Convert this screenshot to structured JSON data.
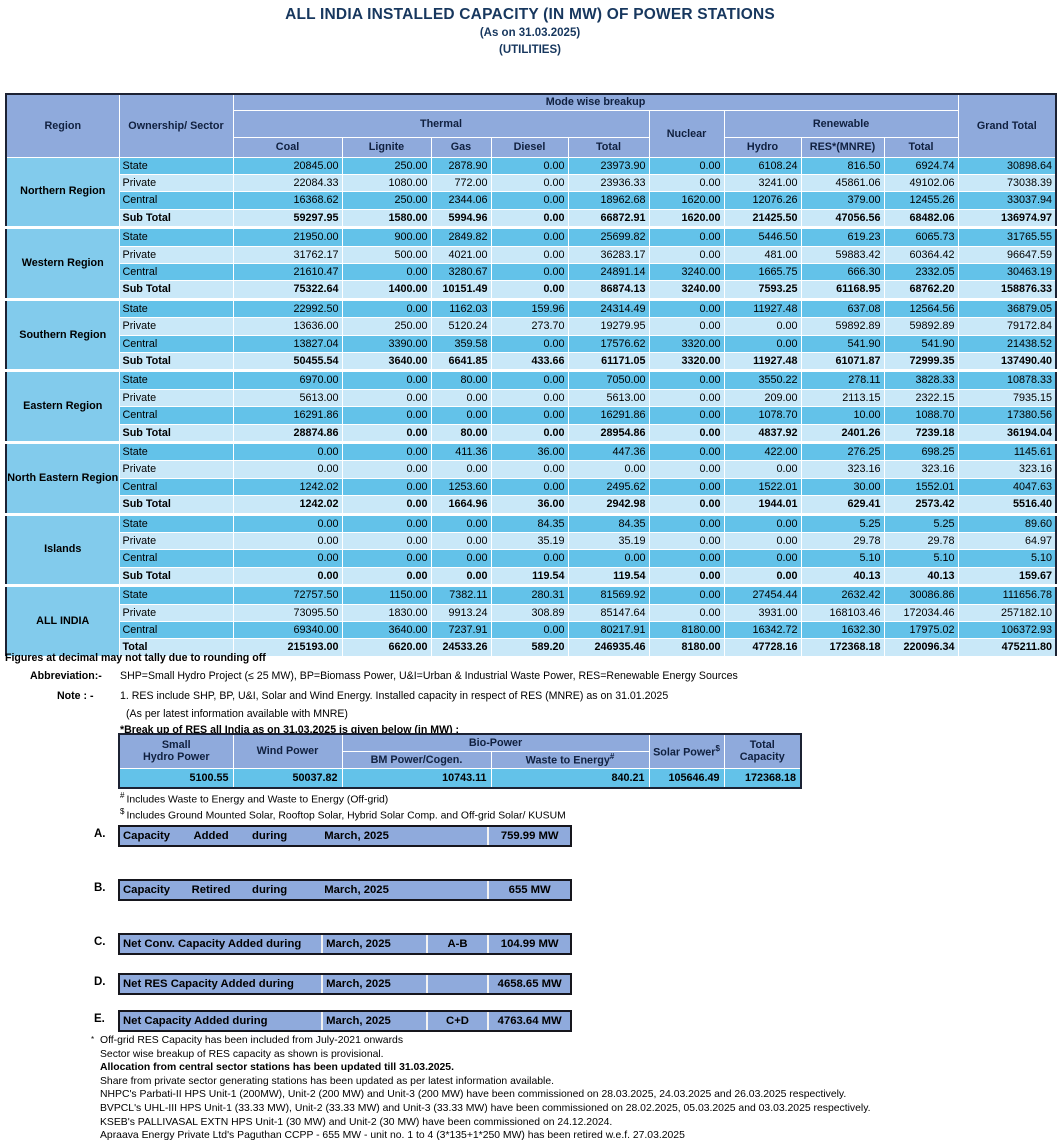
{
  "colors": {
    "header_blue": "#8FAADC",
    "region_blue": "#82CBEC",
    "row_medium": "#63C2E9",
    "row_light": "#C9E8F8",
    "title_navy": "#17375E",
    "border_dark": "#1c2233"
  },
  "title": {
    "main": "ALL INDIA  INSTALLED CAPACITY (IN MW) OF POWER STATIONS",
    "as_on": "(As on 31.03.2025)",
    "utilities": "(UTILITIES)"
  },
  "main_table": {
    "header": {
      "region": "Region",
      "ownership": "Ownership/ Sector",
      "mode_breakup": "Mode wise breakup",
      "thermal": "Thermal",
      "nuclear": "Nuclear",
      "renewable": "Renewable",
      "grand_total": "Grand Total",
      "columns": [
        "Coal",
        "Lignite",
        "Gas",
        "Diesel",
        "Total",
        "Hydro",
        "RES*(MNRE)",
        "Total"
      ]
    },
    "regions": [
      {
        "name": "Northern Region",
        "rows": [
          {
            "sector": "State",
            "values": [
              "20845.00",
              "250.00",
              "2878.90",
              "0.00",
              "23973.90",
              "0.00",
              "6108.24",
              "816.50",
              "6924.74",
              "30898.64"
            ]
          },
          {
            "sector": "Private",
            "values": [
              "22084.33",
              "1080.00",
              "772.00",
              "0.00",
              "23936.33",
              "0.00",
              "3241.00",
              "45861.06",
              "49102.06",
              "73038.39"
            ]
          },
          {
            "sector": "Central",
            "values": [
              "16368.62",
              "250.00",
              "2344.06",
              "0.00",
              "18962.68",
              "1620.00",
              "12076.26",
              "379.00",
              "12455.26",
              "33037.94"
            ]
          },
          {
            "sector": "Sub Total",
            "bold": true,
            "values": [
              "59297.95",
              "1580.00",
              "5994.96",
              "0.00",
              "66872.91",
              "1620.00",
              "21425.50",
              "47056.56",
              "68482.06",
              "136974.97"
            ]
          }
        ]
      },
      {
        "name": "Western Region",
        "rows": [
          {
            "sector": "State",
            "values": [
              "21950.00",
              "900.00",
              "2849.82",
              "0.00",
              "25699.82",
              "0.00",
              "5446.50",
              "619.23",
              "6065.73",
              "31765.55"
            ]
          },
          {
            "sector": "Private",
            "values": [
              "31762.17",
              "500.00",
              "4021.00",
              "0.00",
              "36283.17",
              "0.00",
              "481.00",
              "59883.42",
              "60364.42",
              "96647.59"
            ]
          },
          {
            "sector": "Central",
            "values": [
              "21610.47",
              "0.00",
              "3280.67",
              "0.00",
              "24891.14",
              "3240.00",
              "1665.75",
              "666.30",
              "2332.05",
              "30463.19"
            ]
          },
          {
            "sector": "Sub Total",
            "bold": true,
            "values": [
              "75322.64",
              "1400.00",
              "10151.49",
              "0.00",
              "86874.13",
              "3240.00",
              "7593.25",
              "61168.95",
              "68762.20",
              "158876.33"
            ]
          }
        ]
      },
      {
        "name": "Southern Region",
        "rows": [
          {
            "sector": "State",
            "values": [
              "22992.50",
              "0.00",
              "1162.03",
              "159.96",
              "24314.49",
              "0.00",
              "11927.48",
              "637.08",
              "12564.56",
              "36879.05"
            ]
          },
          {
            "sector": "Private",
            "values": [
              "13636.00",
              "250.00",
              "5120.24",
              "273.70",
              "19279.95",
              "0.00",
              "0.00",
              "59892.89",
              "59892.89",
              "79172.84"
            ]
          },
          {
            "sector": "Central",
            "values": [
              "13827.04",
              "3390.00",
              "359.58",
              "0.00",
              "17576.62",
              "3320.00",
              "0.00",
              "541.90",
              "541.90",
              "21438.52"
            ]
          },
          {
            "sector": "Sub Total",
            "bold": true,
            "values": [
              "50455.54",
              "3640.00",
              "6641.85",
              "433.66",
              "61171.05",
              "3320.00",
              "11927.48",
              "61071.87",
              "72999.35",
              "137490.40"
            ]
          }
        ]
      },
      {
        "name": "Eastern Region",
        "rows": [
          {
            "sector": "State",
            "values": [
              "6970.00",
              "0.00",
              "80.00",
              "0.00",
              "7050.00",
              "0.00",
              "3550.22",
              "278.11",
              "3828.33",
              "10878.33"
            ]
          },
          {
            "sector": "Private",
            "values": [
              "5613.00",
              "0.00",
              "0.00",
              "0.00",
              "5613.00",
              "0.00",
              "209.00",
              "2113.15",
              "2322.15",
              "7935.15"
            ]
          },
          {
            "sector": "Central",
            "values": [
              "16291.86",
              "0.00",
              "0.00",
              "0.00",
              "16291.86",
              "0.00",
              "1078.70",
              "10.00",
              "1088.70",
              "17380.56"
            ]
          },
          {
            "sector": "Sub Total",
            "bold": true,
            "values": [
              "28874.86",
              "0.00",
              "80.00",
              "0.00",
              "28954.86",
              "0.00",
              "4837.92",
              "2401.26",
              "7239.18",
              "36194.04"
            ]
          }
        ]
      },
      {
        "name": "North Eastern Region",
        "rows": [
          {
            "sector": "State",
            "values": [
              "0.00",
              "0.00",
              "411.36",
              "36.00",
              "447.36",
              "0.00",
              "422.00",
              "276.25",
              "698.25",
              "1145.61"
            ]
          },
          {
            "sector": "Private",
            "values": [
              "0.00",
              "0.00",
              "0.00",
              "0.00",
              "0.00",
              "0.00",
              "0.00",
              "323.16",
              "323.16",
              "323.16"
            ]
          },
          {
            "sector": "Central",
            "values": [
              "1242.02",
              "0.00",
              "1253.60",
              "0.00",
              "2495.62",
              "0.00",
              "1522.01",
              "30.00",
              "1552.01",
              "4047.63"
            ]
          },
          {
            "sector": "Sub Total",
            "bold": true,
            "values": [
              "1242.02",
              "0.00",
              "1664.96",
              "36.00",
              "2942.98",
              "0.00",
              "1944.01",
              "629.41",
              "2573.42",
              "5516.40"
            ]
          }
        ]
      },
      {
        "name": "Islands",
        "rows": [
          {
            "sector": "State",
            "values": [
              "0.00",
              "0.00",
              "0.00",
              "84.35",
              "84.35",
              "0.00",
              "0.00",
              "5.25",
              "5.25",
              "89.60"
            ]
          },
          {
            "sector": "Private",
            "values": [
              "0.00",
              "0.00",
              "0.00",
              "35.19",
              "35.19",
              "0.00",
              "0.00",
              "29.78",
              "29.78",
              "64.97"
            ]
          },
          {
            "sector": "Central",
            "values": [
              "0.00",
              "0.00",
              "0.00",
              "0.00",
              "0.00",
              "0.00",
              "0.00",
              "5.10",
              "5.10",
              "5.10"
            ]
          },
          {
            "sector": "Sub Total",
            "bold": true,
            "values": [
              "0.00",
              "0.00",
              "0.00",
              "119.54",
              "119.54",
              "0.00",
              "0.00",
              "40.13",
              "40.13",
              "159.67"
            ]
          }
        ]
      },
      {
        "name": "ALL INDIA",
        "rows": [
          {
            "sector": "State",
            "values": [
              "72757.50",
              "1150.00",
              "7382.11",
              "280.31",
              "81569.92",
              "0.00",
              "27454.44",
              "2632.42",
              "30086.86",
              "111656.78"
            ]
          },
          {
            "sector": "Private",
            "values": [
              "73095.50",
              "1830.00",
              "9913.24",
              "308.89",
              "85147.64",
              "0.00",
              "3931.00",
              "168103.46",
              "172034.46",
              "257182.10"
            ]
          },
          {
            "sector": "Central",
            "values": [
              "69340.00",
              "3640.00",
              "7237.91",
              "0.00",
              "80217.91",
              "8180.00",
              "16342.72",
              "1632.30",
              "17975.02",
              "106372.93"
            ]
          },
          {
            "sector": "Total",
            "bold": true,
            "values": [
              "215193.00",
              "6620.00",
              "24533.26",
              "589.20",
              "246935.46",
              "8180.00",
              "47728.16",
              "172368.18",
              "220096.34",
              "475211.80"
            ]
          }
        ]
      }
    ]
  },
  "notes": {
    "rounding": "Figures at decimal may not tally due to rounding off",
    "abbreviation_label": "Abbreviation:-",
    "abbreviation_text": "SHP=Small Hydro Project (≤ 25 MW), BP=Biomass Power, U&I=Urban & Industrial Waste Power, RES=Renewable Energy Sources",
    "note_label": "Note : -",
    "note_text": "1. RES include SHP, BP, U&I, Solar and Wind Energy. Installed capacity in respect of RES (MNRE) as on 31.01.2025",
    "note_text2": "(As per latest information available with MNRE)",
    "res_breakup_title": "*Break up of RES all India as on 31.03.2025 is given below  (in MW) :"
  },
  "res_table": {
    "header": {
      "small_hydro": [
        "Small",
        "Hydro Power"
      ],
      "wind": "Wind Power",
      "bio": "Bio-Power",
      "bm": "BM Power/Cogen.",
      "waste": "Waste to Energy",
      "waste_sup": "#",
      "solar": "Solar Power",
      "solar_sup": "$",
      "total": [
        "Total",
        "Capacity"
      ]
    },
    "values": [
      "5100.55",
      "50037.82",
      "10743.11",
      "840.21",
      "105646.49",
      "172368.18"
    ],
    "footnote_hash_sup": "#",
    "footnote_hash": "Includes Waste to Energy and Waste to Energy (Off-grid)",
    "footnote_dollar_sup": "$",
    "footnote_dollar": "Includes Ground Mounted Solar, Rooftop Solar, Hybrid Solar Comp. and Off-grid Solar/ KUSUM"
  },
  "capacity_rows": [
    {
      "letter": "A.",
      "words": [
        "Capacity",
        "Added",
        "during"
      ],
      "month": "March, 2025",
      "formula": "",
      "value": "759.99 MW"
    },
    {
      "letter": "B.",
      "words": [
        "Capacity",
        "Retired",
        "during"
      ],
      "month": "March, 2025",
      "formula": "",
      "value": "655 MW"
    },
    {
      "letter": "C.",
      "label": "Net Conv. Capacity Added during",
      "month": "March, 2025",
      "formula": "A-B",
      "value": "104.99 MW"
    },
    {
      "letter": "D.",
      "label": "Net RES Capacity Added during",
      "month": "March, 2025",
      "formula": "",
      "value": "4658.65 MW"
    },
    {
      "letter": "E.",
      "label": "Net Capacity Added during",
      "month": "March, 2025",
      "formula": "C+D",
      "value": "4763.64 MW"
    }
  ],
  "footnotes": [
    {
      "sup": "*",
      "text": "Off-grid RES Capacity has been included from July-2021 onwards"
    },
    {
      "text": "Sector wise breakup of RES capacity as shown is provisional."
    },
    {
      "bold": true,
      "text": "Allocation from central sector stations has been updated till 31.03.2025."
    },
    {
      "text": "Share from private sector generating stations has been updated as per latest information available."
    },
    {
      "text": "NHPC's Parbati-II HPS Unit-1 (200MW), Unit-2 (200 MW) and Unit-3 (200 MW) have been commissioned on 28.03.2025, 24.03.2025 and 26.03.2025 respectively."
    },
    {
      "text": "BVPCL's UHL-III HPS Unit-1 (33.33 MW), Unit-2 (33.33 MW) and Unit-3 (33.33 MW) have been commissioned on 28.02.2025, 05.03.2025 and 03.03.2025 respectively."
    },
    {
      "text": "KSEB's PALLIVASAL EXTN HPS Unit-1 (30 MW) and Unit-2 (30 MW) have been commissioned on 24.12.2024."
    },
    {
      "text": "Apraava Energy Private Ltd's Paguthan CCPP - 655 MW - unit no. 1 to 4 (3*135+1*250 MW) has been retired w.e.f. 27.03.2025"
    }
  ]
}
